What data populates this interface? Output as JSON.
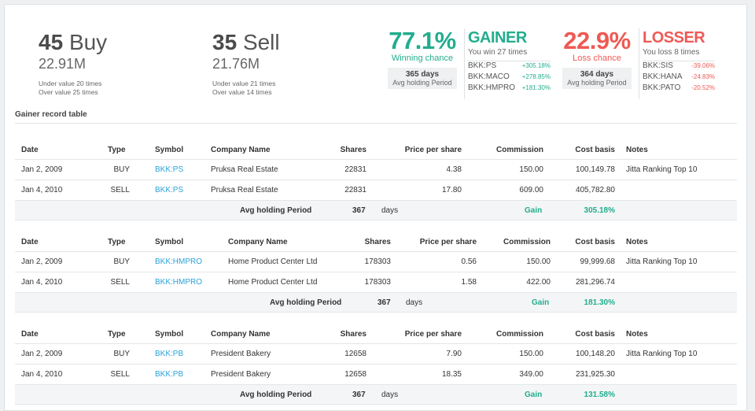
{
  "summary": {
    "buy": {
      "count": "45",
      "label": "Buy",
      "amount": "22.91M",
      "note1": "Under value 20 times",
      "note2": "Over value 25 times"
    },
    "sell": {
      "count": "35",
      "label": "Sell",
      "amount": "21.76M",
      "note1": "Under value 21 times",
      "note2": "Over value 14 times"
    },
    "win": {
      "pct": "77.1%",
      "caption": "Winning chance",
      "days": "365 days",
      "period_label": "Avg holding Period"
    },
    "loss": {
      "pct": "22.9%",
      "caption": "Loss chance",
      "days": "364 days",
      "period_label": "Avg holding Period"
    },
    "gainer": {
      "title": "GAINER",
      "sub": "You win 27 times",
      "stocks": [
        {
          "symbol": "BKK:PS",
          "change": "+305.18%"
        },
        {
          "symbol": "BKK:MACO",
          "change": "+278.85%"
        },
        {
          "symbol": "BKK:HMPRO",
          "change": "+181.30%"
        }
      ]
    },
    "losser": {
      "title": "LOSSER",
      "sub": "You loss 8 times",
      "stocks": [
        {
          "symbol": "BKK:SIS",
          "change": "-39.06%"
        },
        {
          "symbol": "BKK:HANA",
          "change": "-24.83%"
        },
        {
          "symbol": "BKK:PATO",
          "change": "-20.52%"
        }
      ]
    }
  },
  "section_title": "Gainer record table",
  "columns": {
    "date": "Date",
    "type": "Type",
    "symbol": "Symbol",
    "company": "Company Name",
    "shares": "Shares",
    "price": "Price per share",
    "commission": "Commission",
    "cost": "Cost basis",
    "notes": "Notes"
  },
  "tables": [
    {
      "rows": [
        {
          "date": "Jan 2, 2009",
          "type": "BUY",
          "symbol": "BKK:PS",
          "company": "Pruksa Real Estate",
          "shares": "22831",
          "price": "4.38",
          "commission": "150.00",
          "cost": "100,149.78",
          "notes": "Jitta Ranking Top 10"
        },
        {
          "date": "Jan 4, 2010",
          "type": "SELL",
          "symbol": "BKK:PS",
          "company": "Pruksa Real Estate",
          "shares": "22831",
          "price": "17.80",
          "commission": "609.00",
          "cost": "405,782.80",
          "notes": ""
        }
      ],
      "footer": {
        "label": "Avg holding Period",
        "value": "367",
        "unit": "days",
        "gain_label": "Gain",
        "gain_value": "305.18%"
      }
    },
    {
      "rows": [
        {
          "date": "Jan 2, 2009",
          "type": "BUY",
          "symbol": "BKK:HMPRO",
          "company": "Home Product Center Ltd",
          "shares": "178303",
          "price": "0.56",
          "commission": "150.00",
          "cost": "99,999.68",
          "notes": "Jitta Ranking Top 10"
        },
        {
          "date": "Jan 4, 2010",
          "type": "SELL",
          "symbol": "BKK:HMPRO",
          "company": "Home Product Center Ltd",
          "shares": "178303",
          "price": "1.58",
          "commission": "422.00",
          "cost": "281,296.74",
          "notes": ""
        }
      ],
      "footer": {
        "label": "Avg holding Period",
        "value": "367",
        "unit": "days",
        "gain_label": "Gain",
        "gain_value": "181.30%"
      }
    },
    {
      "rows": [
        {
          "date": "Jan 2, 2009",
          "type": "BUY",
          "symbol": "BKK:PB",
          "company": "President Bakery",
          "shares": "12658",
          "price": "7.90",
          "commission": "150.00",
          "cost": "100,148.20",
          "notes": "Jitta Ranking Top 10"
        },
        {
          "date": "Jan 4, 2010",
          "type": "SELL",
          "symbol": "BKK:PB",
          "company": "President Bakery",
          "shares": "12658",
          "price": "18.35",
          "commission": "349.00",
          "cost": "231,925.30",
          "notes": ""
        }
      ],
      "footer": {
        "label": "Avg holding Period",
        "value": "367",
        "unit": "days",
        "gain_label": "Gain",
        "gain_value": "131.58%"
      }
    }
  ]
}
